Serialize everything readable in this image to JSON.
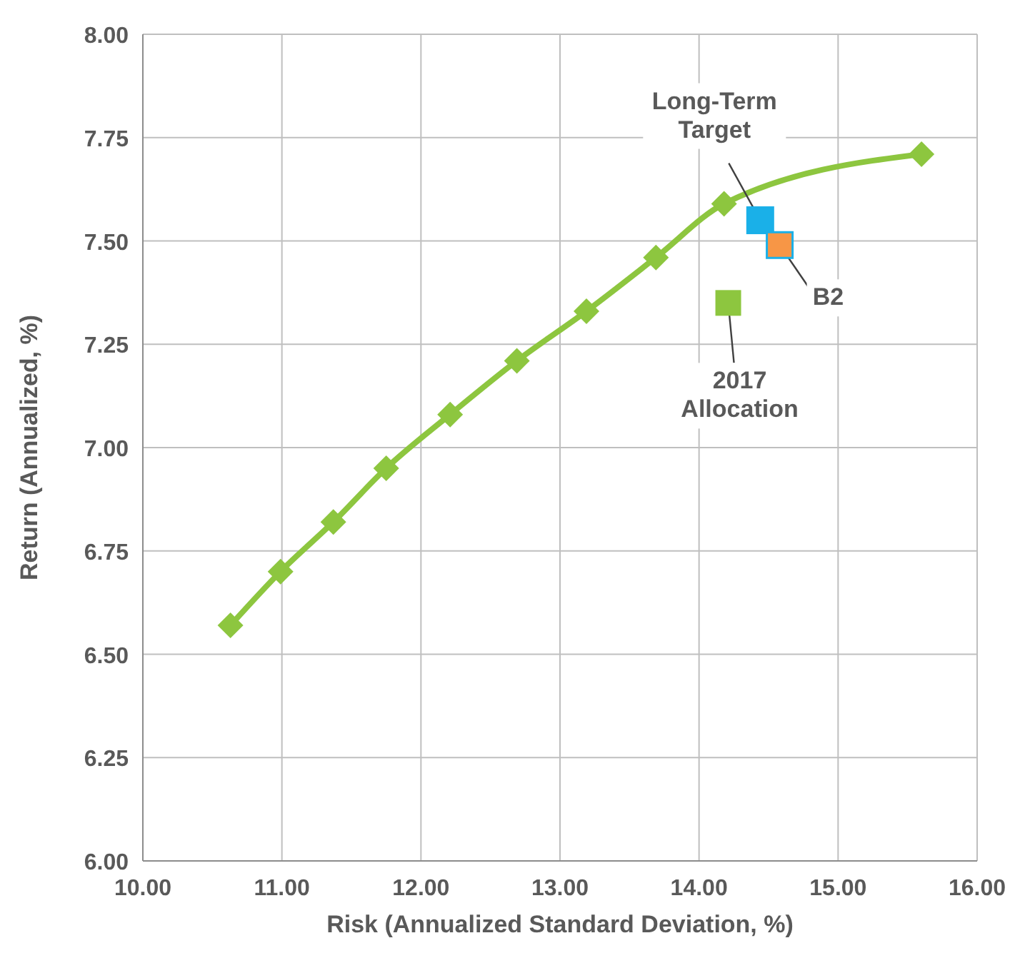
{
  "chart_data": {
    "type": "line",
    "xlabel": "Risk (Annualized Standard Deviation, %)",
    "ylabel": "Return (Annualized, %)",
    "xlim": [
      10,
      16
    ],
    "xticks": [
      {
        "value": 10,
        "label": "10.00"
      },
      {
        "value": 11,
        "label": "11.00"
      },
      {
        "value": 12,
        "label": "12.00"
      },
      {
        "value": 13,
        "label": "13.00"
      },
      {
        "value": 14,
        "label": "14.00"
      },
      {
        "value": 15,
        "label": "15.00"
      },
      {
        "value": 16,
        "label": "16.00"
      }
    ],
    "ylim": [
      6,
      8
    ],
    "yticks": [
      {
        "value": 6,
        "label": "6.00"
      },
      {
        "value": 6.25,
        "label": "6.25"
      },
      {
        "value": 6.5,
        "label": "6.50"
      },
      {
        "value": 6.75,
        "label": "6.75"
      },
      {
        "value": 7,
        "label": "7.00"
      },
      {
        "value": 7.25,
        "label": "7.25"
      },
      {
        "value": 7.5,
        "label": "7.50"
      },
      {
        "value": 7.75,
        "label": "7.75"
      },
      {
        "value": 8,
        "label": "8.00"
      }
    ],
    "grid": true,
    "legend": false,
    "series": [
      {
        "color": "#8dc63f",
        "marker": "diamond",
        "x": [
          10.63,
          10.99,
          11.37,
          11.75,
          12.21,
          12.69,
          13.19,
          13.69,
          14.18,
          15.6
        ],
        "values": [
          6.57,
          6.7,
          6.82,
          6.95,
          7.08,
          7.21,
          7.33,
          7.46,
          7.59,
          7.71
        ]
      },
      {
        "type": "scatter",
        "name": "Long-Term Target",
        "color": "#1ab0e8",
        "marker": "square",
        "x": [
          14.44
        ],
        "values": [
          7.55
        ]
      },
      {
        "type": "scatter",
        "name": "B2",
        "color": "#f79646",
        "marker": "square",
        "x": [
          14.58
        ],
        "values": [
          7.49
        ]
      },
      {
        "type": "scatter",
        "name": "2017 Allocation",
        "color": "#8dc63f",
        "marker": "square",
        "x": [
          14.21
        ],
        "values": [
          7.35
        ]
      }
    ]
  }
}
